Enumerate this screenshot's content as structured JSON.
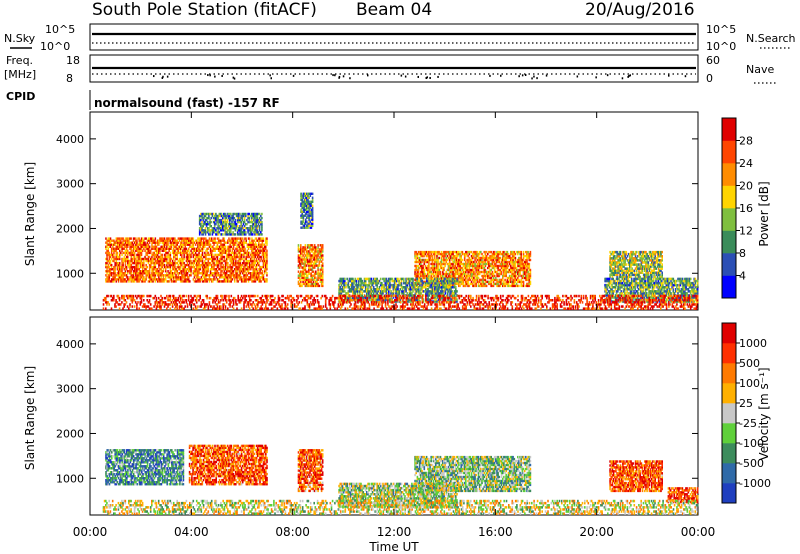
{
  "header": {
    "station": "South Pole Station (fitACF)",
    "beam": "Beam 04",
    "date": "20/Aug/2016"
  },
  "mode_label": "normalsound (fast) -157 RF",
  "param_panels": {
    "nsky_label": "N.Sky",
    "nsky_ticks": [
      "10^5",
      "10^0"
    ],
    "nsearch_label": "N.Search",
    "nsearch_ticks": [
      "10^5",
      "10^0"
    ],
    "freq_label_line1": "Freq.",
    "freq_label_line2": "[MHz]",
    "freq_ticks": [
      "18",
      "8"
    ],
    "cpid_label": "CPID",
    "nave_label": "Nave",
    "nave_ticks": [
      "60",
      "0"
    ]
  },
  "chart_data": [
    {
      "type": "heatmap",
      "name": "power",
      "ylabel": "Slant Range [km]",
      "yticks": [
        1000,
        2000,
        3000,
        4000
      ],
      "ylim": [
        180,
        4600
      ],
      "xlim_hours": [
        0,
        24
      ],
      "colorbar": {
        "label": "Power [dB]",
        "ticks": [
          "4",
          "8",
          "12",
          "16",
          "20",
          "24",
          "28"
        ],
        "colors": [
          "#0000ff",
          "#2b4fb5",
          "#3a8c5a",
          "#7fbf3f",
          "#ffd400",
          "#ff8c00",
          "#ff4500",
          "#e00000"
        ]
      },
      "regions": [
        {
          "t0": 0.6,
          "t1": 7.0,
          "r0": 800,
          "r1": 1800,
          "level": 0.75
        },
        {
          "t0": 8.2,
          "t1": 9.2,
          "r0": 700,
          "r1": 1650,
          "level": 0.7
        },
        {
          "t0": 12.8,
          "t1": 17.4,
          "r0": 700,
          "r1": 1500,
          "level": 0.7
        },
        {
          "t0": 20.5,
          "t1": 22.6,
          "r0": 900,
          "r1": 1500,
          "level": 0.45
        },
        {
          "t0": 4.3,
          "t1": 6.8,
          "r0": 1850,
          "r1": 2350,
          "level": 0.3
        },
        {
          "t0": 8.3,
          "t1": 8.8,
          "r0": 2000,
          "r1": 2800,
          "level": 0.3
        },
        {
          "t0": 9.8,
          "t1": 14.5,
          "r0": 350,
          "r1": 900,
          "level": 0.35
        },
        {
          "t0": 20.3,
          "t1": 24.0,
          "r0": 350,
          "r1": 900,
          "level": 0.35
        },
        {
          "t0": 0.5,
          "t1": 24.0,
          "r0": 190,
          "r1": 520,
          "level": 0.9
        }
      ]
    },
    {
      "type": "heatmap",
      "name": "velocity",
      "ylabel": "Slant Range [km]",
      "yticks": [
        1000,
        2000,
        3000,
        4000
      ],
      "ylim": [
        180,
        4600
      ],
      "xlim_hours": [
        0,
        24
      ],
      "xticks": [
        "00:00",
        "04:00",
        "08:00",
        "12:00",
        "16:00",
        "20:00",
        "00:00"
      ],
      "xlabel": "Time UT",
      "colorbar": {
        "label": "Velocity [m s⁻¹]",
        "ticks": [
          "1000",
          "500",
          "100",
          "25",
          "-25",
          "-100",
          "-500",
          "-1000"
        ],
        "colors": [
          "#1f3fbf",
          "#2f6aa8",
          "#3c8c5c",
          "#5fd03a",
          "#c8c8c8",
          "#ffb000",
          "#ff7a00",
          "#ff3000",
          "#e00000"
        ]
      },
      "regions": [
        {
          "t0": 0.6,
          "t1": 3.7,
          "r0": 850,
          "r1": 1650,
          "level": 0.25
        },
        {
          "t0": 3.9,
          "t1": 7.0,
          "r0": 850,
          "r1": 1750,
          "level": 0.8
        },
        {
          "t0": 8.2,
          "t1": 9.2,
          "r0": 700,
          "r1": 1650,
          "level": 0.78
        },
        {
          "t0": 12.8,
          "t1": 17.4,
          "r0": 700,
          "r1": 1500,
          "level": 0.4
        },
        {
          "t0": 20.5,
          "t1": 22.6,
          "r0": 700,
          "r1": 1400,
          "level": 0.8
        },
        {
          "t0": 22.8,
          "t1": 24.0,
          "r0": 450,
          "r1": 800,
          "level": 0.82
        },
        {
          "t0": 9.8,
          "t1": 14.5,
          "r0": 350,
          "r1": 900,
          "level": 0.45
        },
        {
          "t0": 0.5,
          "t1": 24.0,
          "r0": 190,
          "r1": 520,
          "level": 0.52
        }
      ]
    }
  ]
}
